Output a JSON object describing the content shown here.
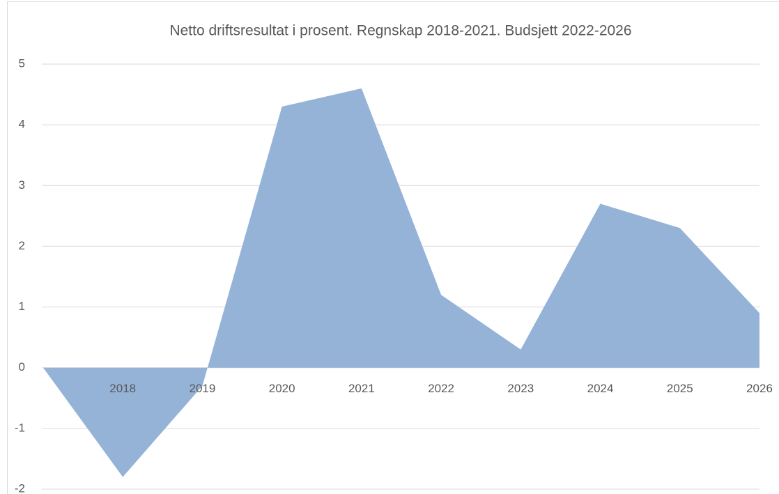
{
  "chart_data": {
    "type": "area",
    "title": "Netto driftsresultat i prosent. Regnskap 2018-2021. Budsjett 2022-2026",
    "categories": [
      null,
      "2018",
      "2019",
      "2020",
      "2021",
      "2022",
      "2023",
      "2024",
      "2025",
      "2026"
    ],
    "values": [
      0,
      -1.8,
      -0.3,
      4.3,
      4.6,
      1.2,
      0.3,
      2.7,
      2.3,
      0.9
    ],
    "color": "#95b3d7",
    "ylim": [
      -2,
      5
    ],
    "yticks": [
      -2,
      -1,
      0,
      1,
      2,
      3,
      4,
      5
    ],
    "grid": true
  }
}
